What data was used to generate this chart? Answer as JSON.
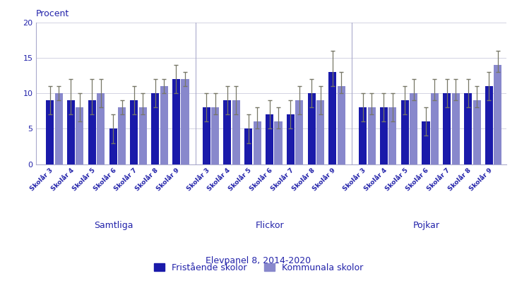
{
  "groups": [
    "Samtliga",
    "Flickor",
    "Pojkar"
  ],
  "years": [
    "Skolår 3",
    "Skolår 4",
    "Skolår 5",
    "Skolår 6",
    "Skolår 7",
    "Skolår 8",
    "Skolår 9"
  ],
  "fristående": {
    "Samtliga": [
      9,
      9,
      9,
      5,
      9,
      10,
      12
    ],
    "Flickor": [
      8,
      9,
      5,
      7,
      7,
      10,
      13
    ],
    "Pojkar": [
      8,
      8,
      9,
      6,
      10,
      10,
      11
    ]
  },
  "kommunala": {
    "Samtliga": [
      10,
      8,
      10,
      8,
      8,
      11,
      12
    ],
    "Flickor": [
      8,
      9,
      6,
      6,
      9,
      9,
      11
    ],
    "Pojkar": [
      8,
      8,
      10,
      10,
      10,
      9,
      14
    ]
  },
  "fristående_err_low": {
    "Samtliga": [
      2,
      2,
      2,
      2,
      2,
      2,
      2
    ],
    "Flickor": [
      2,
      2,
      2,
      2,
      2,
      2,
      2
    ],
    "Pojkar": [
      2,
      2,
      2,
      2,
      2,
      2,
      2
    ]
  },
  "fristående_err_high": {
    "Samtliga": [
      2,
      3,
      3,
      2,
      2,
      2,
      2
    ],
    "Flickor": [
      2,
      2,
      2,
      2,
      2,
      2,
      3
    ],
    "Pojkar": [
      2,
      2,
      2,
      2,
      2,
      2,
      2
    ]
  },
  "kommunala_err_low": {
    "Samtliga": [
      1,
      2,
      2,
      1,
      1,
      1,
      1
    ],
    "Flickor": [
      1,
      2,
      1,
      1,
      2,
      2,
      1
    ],
    "Pojkar": [
      1,
      2,
      1,
      1,
      1,
      1,
      1
    ]
  },
  "kommunala_err_high": {
    "Samtliga": [
      1,
      2,
      2,
      1,
      2,
      1,
      1
    ],
    "Flickor": [
      2,
      2,
      2,
      2,
      2,
      2,
      2
    ],
    "Pojkar": [
      2,
      2,
      2,
      2,
      2,
      2,
      2
    ]
  },
  "color_fristående": "#1a1aaa",
  "color_kommunala": "#8888cc",
  "ylabel": "Procent",
  "xlabel": "Elevpanel 8, 2014-2020",
  "ylim": [
    0,
    20
  ],
  "yticks": [
    0,
    5,
    10,
    15,
    20
  ],
  "legend_fristående": "Fristående skolor",
  "legend_kommunala": "Kommunala skolor",
  "error_color": "#777766",
  "title_color": "#2222aa",
  "grid_color": "#ccccdd",
  "separator_color": "#aaaacc"
}
